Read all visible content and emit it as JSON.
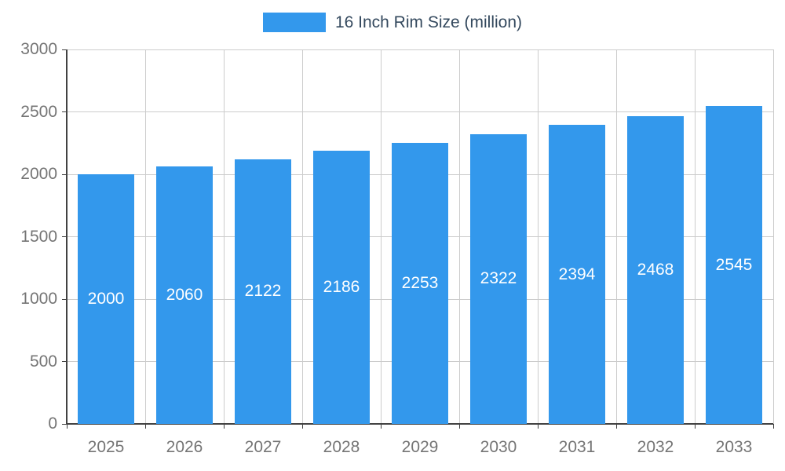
{
  "legend": {
    "label": "16 Inch Rim Size (million)"
  },
  "chart_data": {
    "type": "bar",
    "title": "",
    "series_name": "16 Inch Rim Size (million)",
    "categories": [
      "2025",
      "2026",
      "2027",
      "2028",
      "2029",
      "2030",
      "2031",
      "2032",
      "2033"
    ],
    "values": [
      2000,
      2060,
      2122,
      2186,
      2253,
      2322,
      2394,
      2468,
      2545
    ],
    "xlabel": "",
    "ylabel": "",
    "ylim": [
      0,
      3000
    ],
    "yticks": [
      0,
      500,
      1000,
      1500,
      2000,
      2500,
      3000
    ],
    "grid": true,
    "legend_position": "top",
    "value_labels": "inside-center",
    "colors": {
      "bar": "#3398EC",
      "value_label": "#FFFFFF",
      "grid_line": "#CCCCCC",
      "axis_line": "#424242",
      "axis_label": "#757575",
      "legend_text": "#34495E"
    }
  }
}
